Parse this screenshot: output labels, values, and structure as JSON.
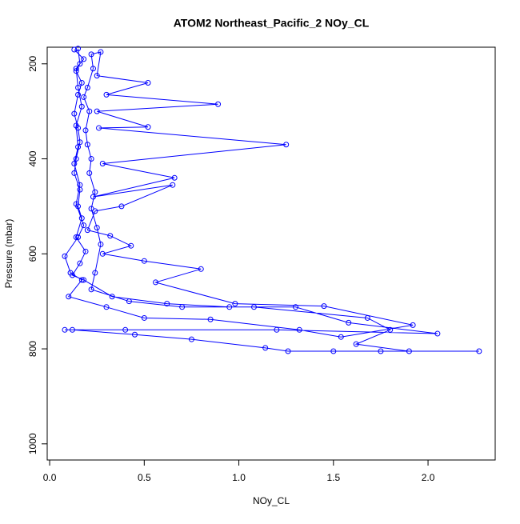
{
  "chart_data": {
    "type": "line-points",
    "title": "ATOM2 Northeast_Pacific_2 NOy_CL",
    "x_label": "NOy_CL",
    "y_label": "Pressure (mbar)",
    "color": "#0000ff",
    "xlim": [
      -0.013,
      2.355
    ],
    "ylim": [
      1034,
      165
    ],
    "xticks": [
      {
        "value": 0,
        "label": "0.0"
      },
      0.5,
      {
        "value": 1,
        "label": "1.0"
      },
      1.5,
      {
        "value": 2,
        "label": "2.0"
      }
    ],
    "yticks": [
      200,
      400,
      600,
      800,
      1000
    ],
    "series": [
      {
        "name": "NOy_CL",
        "x": [
          0.15,
          0.16,
          0.14,
          0.17,
          0.15,
          0.13,
          0.15,
          0.16,
          0.14,
          0.13,
          0.16,
          0.15,
          0.17,
          0.14,
          0.19,
          0.16,
          0.12,
          0.18,
          0.33,
          0.62,
          0.95,
          1.3,
          1.58,
          2.05,
          1.2,
          0.4,
          0.08,
          0.12,
          0.45,
          0.75,
          1.14,
          1.26,
          1.5,
          1.75,
          2.27,
          1.9,
          1.62,
          1.8,
          1.68,
          1.08,
          0.7,
          0.42,
          0.22,
          0.24,
          0.27,
          0.25,
          0.22,
          0.24,
          0.21,
          0.22,
          0.2,
          0.19,
          0.21,
          0.18,
          0.2,
          0.23,
          0.22,
          0.27,
          0.25,
          0.52,
          0.3,
          0.89,
          0.25,
          0.52,
          0.26,
          1.25,
          0.28,
          0.66,
          0.23,
          0.65,
          0.38,
          0.24,
          0.2,
          0.32,
          0.43,
          0.28,
          0.5,
          0.8,
          0.56,
          0.98,
          1.45,
          1.92,
          1.54,
          1.32,
          0.85,
          0.5,
          0.3,
          0.1,
          0.17,
          0.11,
          0.08,
          0.15,
          0.18,
          0.14,
          0.16,
          0.13,
          0.15,
          0.14,
          0.17,
          0.15,
          0.14,
          0.18,
          0.13
        ],
        "values": [
          168,
          200,
          215,
          240,
          265,
          305,
          335,
          365,
          400,
          430,
          465,
          500,
          525,
          565,
          595,
          620,
          645,
          655,
          690,
          705,
          712,
          712,
          745,
          768,
          760,
          760,
          760,
          760,
          770,
          780,
          798,
          805,
          805,
          805,
          805,
          805,
          790,
          760,
          735,
          712,
          712,
          700,
          675,
          640,
          580,
          545,
          505,
          470,
          430,
          400,
          370,
          340,
          300,
          270,
          250,
          210,
          180,
          175,
          225,
          240,
          265,
          285,
          300,
          333,
          335,
          370,
          410,
          440,
          480,
          455,
          500,
          510,
          550,
          562,
          583,
          600,
          615,
          632,
          660,
          705,
          710,
          750,
          775,
          760,
          738,
          735,
          712,
          690,
          655,
          640,
          605,
          565,
          540,
          495,
          455,
          410,
          375,
          330,
          290,
          250,
          210,
          190,
          170
        ]
      }
    ]
  }
}
